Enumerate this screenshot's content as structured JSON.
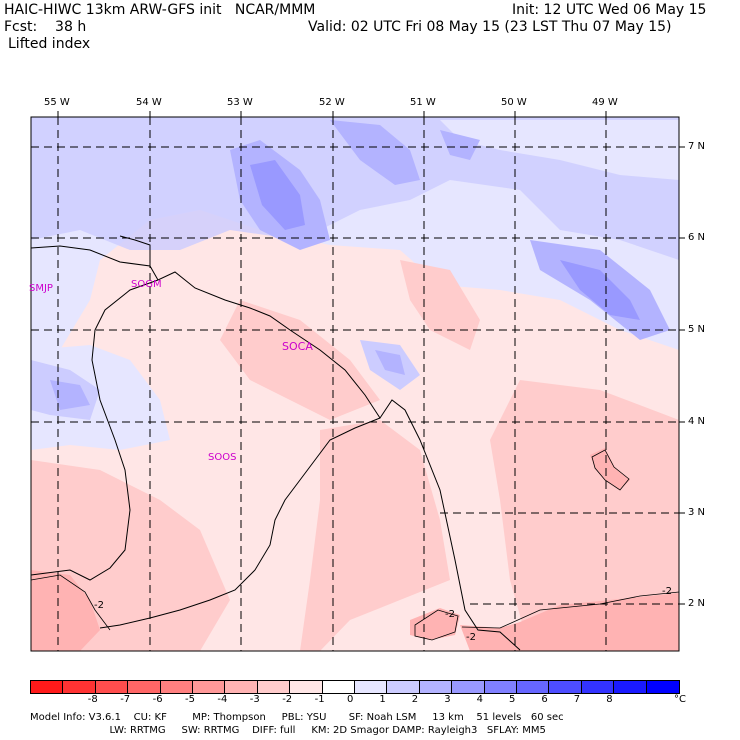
{
  "header": {
    "line1_left": "HAIC-HIWC 13km ARW-GFS init   NCAR/MMM",
    "line1_right": "Init: 12 UTC Wed 06 May 15",
    "line2_left": "Fcst:    38 h",
    "line2_right": "Valid: 02 UTC Fri 08 May 15 (23 LST Thu 07 May 15)",
    "field": "Lifted index"
  },
  "map": {
    "lon_labels": [
      "55 W",
      "54 W",
      "53 W",
      "52 W",
      "51 W",
      "50 W",
      "49 W"
    ],
    "lat_labels": [
      "7 N",
      "6 N",
      "5 N",
      "4 N",
      "3 N",
      "2 N"
    ],
    "stations": [
      "SMJP",
      "SOGM",
      "SOCA",
      "SOOS"
    ],
    "contour_labels": [
      "-2",
      "-2",
      "-2",
      "-2"
    ]
  },
  "colorbar": {
    "unit": "°C",
    "ticks": [
      "-8",
      "-7",
      "-6",
      "-5",
      "-4",
      "-3",
      "-2",
      "-1",
      "0",
      "1",
      "2",
      "3",
      "4",
      "5",
      "6",
      "7",
      "8"
    ],
    "colors": [
      "#ff1a1a",
      "#ff3333",
      "#ff4d4d",
      "#ff6666",
      "#ff8080",
      "#ff9999",
      "#ffb3b3",
      "#ffcccc",
      "#ffe6e6",
      "#ffffff",
      "#e6e6ff",
      "#ccccff",
      "#b3b3ff",
      "#9999ff",
      "#8080ff",
      "#6666ff",
      "#4d4dff",
      "#3333ff",
      "#1a1aff",
      "#0000ff"
    ]
  },
  "footer": {
    "line1": "Model Info: V3.6.1    CU: KF        MP: Thompson     PBL: YSU       SF: Noah LSM     13 km    51 levels   60 sec",
    "line2": "                         LW: RRTMG     SW: RRTMG    DIFF: full     KM: 2D Smagor DAMP: Rayleigh3   SFLAY: MM5"
  }
}
